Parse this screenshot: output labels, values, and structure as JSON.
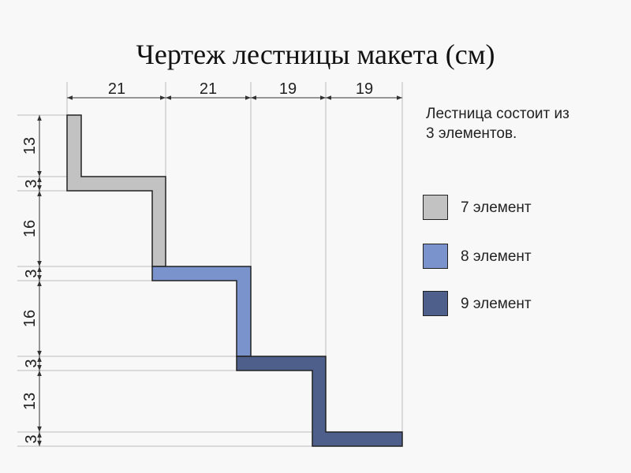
{
  "title": "Чертеж лестницы макета (см)",
  "description": {
    "line1": "Лестница состоит из",
    "line2": "3 элементов."
  },
  "legend": [
    {
      "label": "7 элемент",
      "color": "#c2c2c2"
    },
    {
      "label": "8 элемент",
      "color": "#7b93cd"
    },
    {
      "label": "9 элемент",
      "color": "#4e5f8b"
    }
  ],
  "top_dimensions": [
    "21",
    "21",
    "19",
    "19"
  ],
  "left_dimensions": [
    "13",
    "3",
    "16",
    "3",
    "16",
    "3",
    "13",
    "3"
  ]
}
